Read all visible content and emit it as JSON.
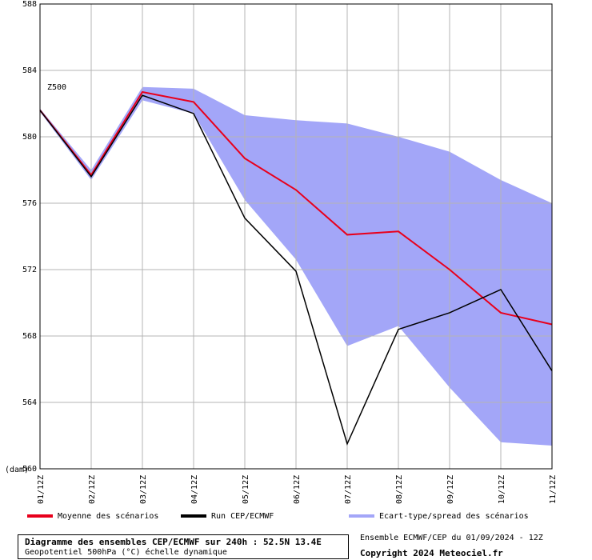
{
  "chart_data": {
    "type": "line",
    "annotation": "Z500",
    "ylabel": "(dam)",
    "ylim": [
      560,
      588
    ],
    "yticks": [
      560,
      564,
      568,
      572,
      576,
      580,
      584,
      588
    ],
    "categories": [
      "01/12Z",
      "02/12Z",
      "03/12Z",
      "04/12Z",
      "05/12Z",
      "06/12Z",
      "07/12Z",
      "08/12Z",
      "09/12Z",
      "10/12Z",
      "11/12Z"
    ],
    "series": [
      {
        "name": "Moyenne des scénarios",
        "color": "#e8001c",
        "values": [
          581.6,
          577.7,
          582.7,
          582.1,
          578.7,
          576.8,
          574.1,
          574.3,
          572.0,
          569.4,
          568.7
        ]
      },
      {
        "name": "Run CEP/ECMWF",
        "color": "#000000",
        "values": [
          581.6,
          577.6,
          582.5,
          581.4,
          575.1,
          571.9,
          561.5,
          568.4,
          569.4,
          570.8,
          565.9
        ]
      }
    ],
    "spread": {
      "name": "Ecart-type/spread des scénarios",
      "color": "#a3a6f8",
      "upper": [
        581.7,
        578.0,
        583.0,
        582.9,
        581.3,
        581.0,
        580.8,
        580.0,
        579.1,
        577.4,
        576.0
      ],
      "lower": [
        581.5,
        577.4,
        582.2,
        581.4,
        576.2,
        572.6,
        567.4,
        568.6,
        564.9,
        561.6,
        561.4
      ]
    },
    "grid": true
  },
  "footer": {
    "title": "Diagramme des ensembles CEP/ECMWF sur 240h : 52.5N 13.4E",
    "subtitle": "Geopotentiel 500hPa (°C) échelle dynamique",
    "run_info": "Ensemble ECMWF/CEP du 01/09/2024 - 12Z",
    "copyright": "Copyright 2024 Meteociel.fr"
  }
}
